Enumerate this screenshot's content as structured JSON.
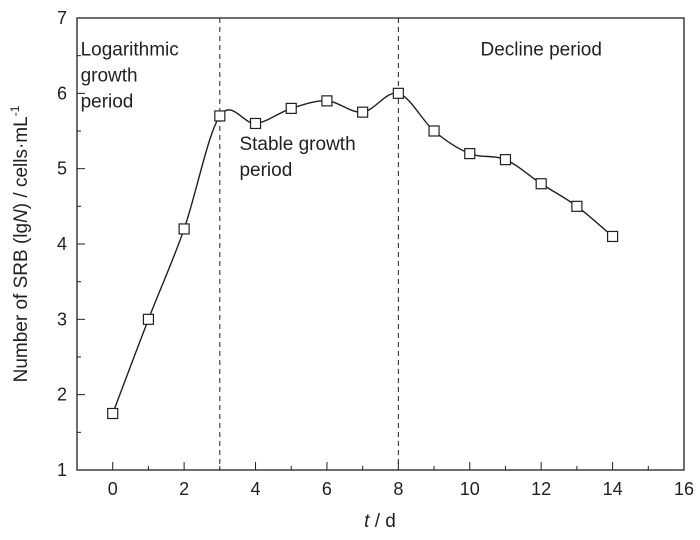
{
  "chart_data": {
    "type": "line",
    "title": "",
    "xlabel_italic": "t",
    "xlabel_rest": " / d",
    "ylabel_prefix": "Number of SRB (lg",
    "ylabel_italic": "N",
    "ylabel_suffix": ") / cells·mL",
    "ylabel_sup": "-1",
    "xlim": [
      -1,
      16
    ],
    "ylim": [
      1,
      7
    ],
    "xticks": [
      0,
      2,
      4,
      6,
      8,
      10,
      12,
      14,
      16
    ],
    "yticks": [
      1,
      2,
      3,
      4,
      5,
      6,
      7
    ],
    "grid": false,
    "marker": "open-square",
    "smooth": true,
    "x": [
      0,
      1,
      2,
      3,
      4,
      5,
      6,
      7,
      8,
      9,
      10,
      11,
      12,
      13,
      14
    ],
    "y": [
      1.75,
      3.0,
      4.2,
      5.7,
      5.6,
      5.8,
      5.9,
      5.75,
      6.0,
      5.5,
      5.2,
      5.12,
      4.8,
      4.5,
      4.1
    ],
    "vlines": [
      3,
      8
    ],
    "annotations": [
      {
        "lines": [
          "Logarithmic",
          "growth",
          "period"
        ],
        "x": -0.9,
        "y": 6.5
      },
      {
        "lines": [
          "Stable growth",
          "period"
        ],
        "x": 3.55,
        "y": 5.25
      },
      {
        "lines": [
          "Decline period"
        ],
        "x": 10.3,
        "y": 6.5
      }
    ]
  }
}
